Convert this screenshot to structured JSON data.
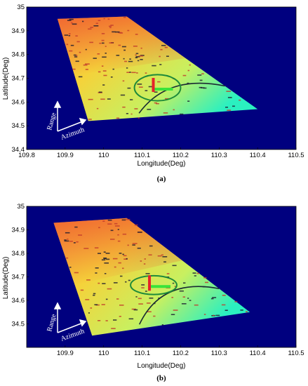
{
  "chart_data": [
    {
      "type": "heatmap",
      "panel_label": "(a)",
      "xlabel": "Longitude(Deg)",
      "ylabel": "Latitude(Deg)",
      "xlim": [
        109.8,
        110.5
      ],
      "ylim": [
        34.4,
        35
      ],
      "xticks": [
        "109.8",
        "109.9",
        "110",
        "110.1",
        "110.2",
        "110.3",
        "110.4",
        "110.5"
      ],
      "yticks": [
        "34.4",
        "34.5",
        "34.6",
        "34.7",
        "34.8",
        "34.9",
        "35"
      ],
      "swath_corners": [
        [
          109.88,
          34.95
        ],
        [
          110.06,
          34.96
        ],
        [
          110.4,
          34.57
        ],
        [
          109.96,
          34.52
        ]
      ],
      "ellipse": {
        "center": [
          110.14,
          34.66
        ],
        "radius_deg": [
          0.06,
          0.055
        ],
        "color": "#1e8a3a"
      },
      "annotations": [
        "Range",
        "Azimuth"
      ],
      "colors": {
        "background": "#00007f",
        "low": "#2bf0c0",
        "mid": "#f5d23a",
        "high": "#ef3a2a"
      }
    },
    {
      "type": "heatmap",
      "panel_label": "(b)",
      "xlabel": "Longitude(Deg)",
      "ylabel": "Latitude(Deg)",
      "xlim": [
        109.8,
        110.5
      ],
      "ylim": [
        34.4,
        35
      ],
      "xticks": [
        "109.9",
        "110",
        "110.1",
        "110.2",
        "110.3",
        "110.4",
        "110.5"
      ],
      "yticks": [
        "34.5",
        "34.6",
        "34.7",
        "34.8",
        "34.9",
        "35"
      ],
      "swath_corners": [
        [
          109.87,
          34.93
        ],
        [
          110.06,
          34.95
        ],
        [
          110.38,
          34.55
        ],
        [
          109.97,
          34.45
        ]
      ],
      "ellipse": {
        "center": [
          110.13,
          34.665
        ],
        "radius_deg": [
          0.06,
          0.04
        ],
        "color": "#1e8a3a"
      },
      "annotations": [
        "Range",
        "Azimuth"
      ],
      "colors": {
        "background": "#00007f",
        "low": "#2bf0c0",
        "mid": "#f5d23a",
        "high": "#ef3a2a"
      }
    }
  ]
}
